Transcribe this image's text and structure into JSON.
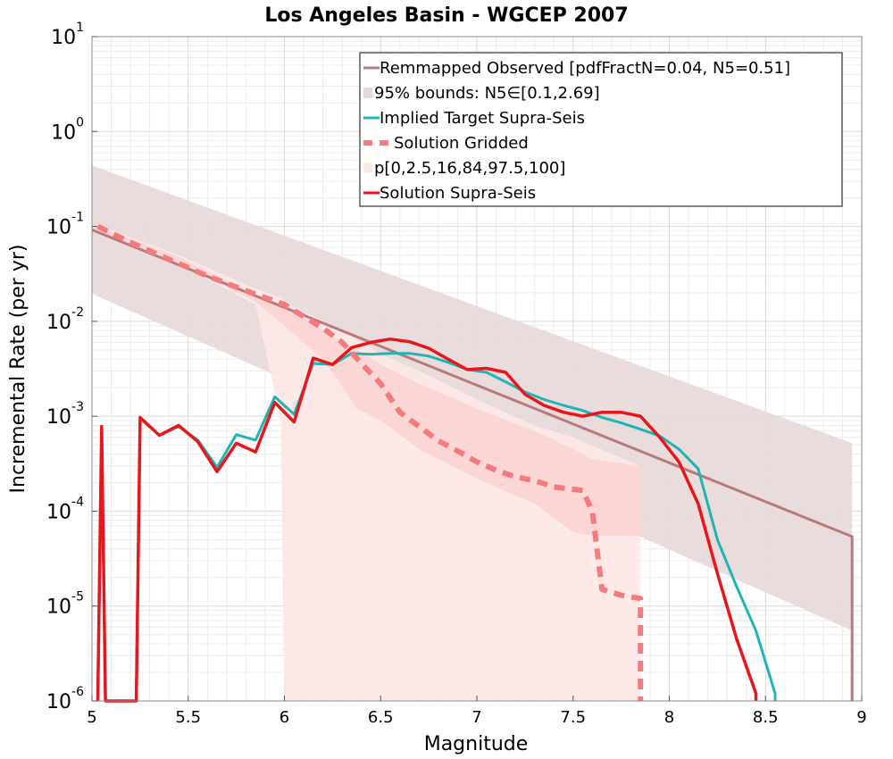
{
  "chart_data": {
    "type": "line",
    "title": "Los Angeles Basin - WGCEP 2007",
    "xlabel": "Magnitude",
    "ylabel": "Incremental Rate (per yr)",
    "xlim": [
      5,
      9
    ],
    "ylim": [
      1e-06,
      10
    ],
    "yscale": "log",
    "grid": true,
    "legend_position": "top-right",
    "x_ticks": [
      "5",
      "5.5",
      "6",
      "6.5",
      "7",
      "7.5",
      "8",
      "8.5",
      "9"
    ],
    "y_ticks": [
      {
        "base": "10",
        "exp": "-6",
        "value": 1e-06
      },
      {
        "base": "10",
        "exp": "-5",
        "value": 1e-05
      },
      {
        "base": "10",
        "exp": "-4",
        "value": 0.0001
      },
      {
        "base": "10",
        "exp": "-3",
        "value": 0.001
      },
      {
        "base": "10",
        "exp": "-2",
        "value": 0.01
      },
      {
        "base": "10",
        "exp": "-1",
        "value": 0.1
      },
      {
        "base": "10",
        "exp": "0",
        "value": 1
      },
      {
        "base": "10",
        "exp": "1",
        "value": 10
      }
    ],
    "bands": [
      {
        "name": "95% bounds: N5∈[0.1,2.69]",
        "color": "#e8d8d8",
        "x": [
          5.0,
          8.95
        ],
        "lower": [
          0.0195,
          5.5e-06
        ],
        "upper": [
          0.44,
          0.00052
        ]
      },
      {
        "name": "p[0,2.5,16,84,97.5,100]",
        "color": "#fde8e6",
        "x": [
          5.05,
          5.45,
          5.85,
          5.98,
          6.0,
          6.3,
          6.5,
          6.7,
          7.0,
          7.3,
          7.5,
          7.85
        ],
        "lower": [
          0.08,
          0.04,
          0.015,
          0.0009,
          1e-06,
          1e-06,
          1e-06,
          1e-06,
          1e-06,
          1e-06,
          1e-06,
          1e-06
        ],
        "upper": [
          0.1,
          0.05,
          0.022,
          0.018,
          0.016,
          0.008,
          0.0045,
          0.003,
          0.0015,
          0.0008,
          0.0006,
          0.0003
        ]
      },
      {
        "name": "p[0,2.5,16,84,97.5,100] inner",
        "color": "#fcd4d2",
        "x": [
          5.05,
          5.45,
          5.85,
          6.0,
          6.2,
          6.38,
          6.5,
          6.7,
          7.0,
          7.3,
          7.5,
          7.6,
          7.85
        ],
        "lower": [
          0.085,
          0.042,
          0.016,
          0.009,
          0.004,
          0.0012,
          0.0009,
          0.00045,
          0.00022,
          0.00012,
          6e-05,
          5.5e-05,
          5.5e-05
        ],
        "upper": [
          0.095,
          0.048,
          0.019,
          0.015,
          0.008,
          0.005,
          0.0035,
          0.0022,
          0.0012,
          0.0007,
          0.00045,
          0.00035,
          0.0003
        ]
      }
    ],
    "series": [
      {
        "name": "Remmapped Observed [pdfFractN=0.04, N5=0.51]",
        "color": "#b77b7b",
        "width": 3,
        "dash": "",
        "x": [
          5.0,
          8.95,
          8.95
        ],
        "y": [
          0.092,
          5.4e-05,
          1e-06
        ]
      },
      {
        "name": "Implied Target Supra-Seis",
        "color": "#1fb5b5",
        "width": 3,
        "dash": "",
        "x": [
          5.03,
          5.05,
          5.07,
          5.23,
          5.25,
          5.35,
          5.45,
          5.55,
          5.65,
          5.75,
          5.85,
          5.95,
          6.05,
          6.15,
          6.25,
          6.35,
          6.45,
          6.55,
          6.65,
          6.75,
          6.85,
          6.95,
          7.05,
          7.15,
          7.25,
          7.35,
          7.45,
          7.55,
          7.65,
          7.75,
          7.85,
          7.95,
          8.05,
          8.15,
          8.25,
          8.35,
          8.45,
          8.55,
          8.55
        ],
        "y": [
          1e-06,
          0.00075,
          1e-06,
          1e-06,
          0.00095,
          0.00063,
          0.00078,
          0.00056,
          0.00029,
          0.00064,
          0.00056,
          0.0016,
          0.00105,
          0.0036,
          0.0035,
          0.0046,
          0.0045,
          0.0046,
          0.0046,
          0.0043,
          0.0037,
          0.0031,
          0.0029,
          0.0023,
          0.0018,
          0.0015,
          0.0013,
          0.00115,
          0.00097,
          0.00085,
          0.00073,
          0.00062,
          0.00045,
          0.00028,
          5e-05,
          1.6e-05,
          5.5e-06,
          1.2e-06,
          1e-06
        ]
      },
      {
        "name": "Solution Gridded",
        "color": "#f47b7b",
        "width": 6,
        "dash": "12,8",
        "x": [
          5.03,
          5.2,
          5.4,
          5.6,
          5.8,
          6.0,
          6.2,
          6.3,
          6.4,
          6.5,
          6.6,
          6.7,
          6.8,
          6.9,
          7.0,
          7.1,
          7.2,
          7.3,
          7.4,
          7.5,
          7.55,
          7.6,
          7.65,
          7.75,
          7.85,
          7.85
        ],
        "y": [
          0.1,
          0.068,
          0.045,
          0.03,
          0.021,
          0.015,
          0.0085,
          0.006,
          0.0036,
          0.0022,
          0.0011,
          0.00078,
          0.00055,
          0.00043,
          0.00033,
          0.00027,
          0.00023,
          0.00021,
          0.00018,
          0.00017,
          0.000165,
          0.0001,
          1.5e-05,
          1.3e-05,
          1.2e-05,
          1e-06
        ]
      },
      {
        "name": "Solution Supra-Seis",
        "color": "#e8161b",
        "width": 3.5,
        "dash": "",
        "x": [
          5.03,
          5.05,
          5.07,
          5.23,
          5.25,
          5.35,
          5.45,
          5.55,
          5.65,
          5.75,
          5.85,
          5.95,
          6.05,
          6.15,
          6.25,
          6.35,
          6.45,
          6.55,
          6.65,
          6.75,
          6.85,
          6.95,
          7.05,
          7.15,
          7.25,
          7.35,
          7.45,
          7.55,
          7.65,
          7.75,
          7.85,
          7.95,
          8.05,
          8.15,
          8.25,
          8.35,
          8.45,
          8.45
        ],
        "y": [
          1e-06,
          0.00078,
          1e-06,
          1e-06,
          0.00097,
          0.00063,
          0.0008,
          0.00054,
          0.00026,
          0.00052,
          0.00042,
          0.0014,
          0.00087,
          0.0041,
          0.0035,
          0.0053,
          0.006,
          0.0065,
          0.0061,
          0.0052,
          0.004,
          0.0031,
          0.0032,
          0.0029,
          0.0017,
          0.0013,
          0.0011,
          0.001,
          0.0011,
          0.0011,
          0.001,
          0.0006,
          0.00033,
          0.00012,
          2.2e-05,
          4.5e-06,
          1.2e-06,
          1e-06
        ]
      }
    ],
    "legend": [
      {
        "label": "Remmapped Observed [pdfFractN=0.04, N5=0.51]",
        "kind": "line",
        "color": "#b77b7b"
      },
      {
        "label": "95% bounds: N5∈[0.1,2.69]",
        "kind": "band",
        "color": "#e8d8d8"
      },
      {
        "label": "Implied Target Supra-Seis",
        "kind": "line",
        "color": "#1fb5b5"
      },
      {
        "label": "Solution Gridded",
        "kind": "dash",
        "color": "#f47b7b"
      },
      {
        "label": "p[0,2.5,16,84,97.5,100]",
        "kind": "band",
        "color": "#fde8e6"
      },
      {
        "label": "Solution Supra-Seis",
        "kind": "line",
        "color": "#e8161b"
      }
    ]
  }
}
